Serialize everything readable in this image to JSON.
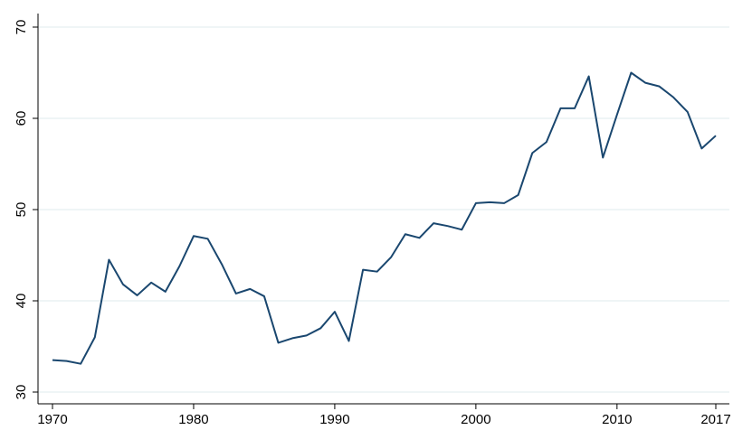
{
  "chart_data": {
    "type": "line",
    "x": [
      1970,
      1971,
      1972,
      1973,
      1974,
      1975,
      1976,
      1977,
      1978,
      1979,
      1980,
      1981,
      1982,
      1983,
      1984,
      1985,
      1986,
      1987,
      1988,
      1989,
      1990,
      1991,
      1992,
      1993,
      1994,
      1995,
      1996,
      1997,
      1998,
      1999,
      2000,
      2001,
      2002,
      2003,
      2004,
      2005,
      2006,
      2007,
      2008,
      2009,
      2010,
      2011,
      2012,
      2013,
      2014,
      2015,
      2016,
      2017
    ],
    "series": [
      {
        "color": "#1a476f",
        "values": [
          33.5,
          33.4,
          33.1,
          36.0,
          44.5,
          41.8,
          40.6,
          42.0,
          41.0,
          43.8,
          47.1,
          46.8,
          44.0,
          40.8,
          41.3,
          40.5,
          35.4,
          35.9,
          36.2,
          37.0,
          38.8,
          35.6,
          43.4,
          43.2,
          44.8,
          47.3,
          46.9,
          48.5,
          48.2,
          47.8,
          50.7,
          50.8,
          50.7,
          51.6,
          56.2,
          57.4,
          61.1,
          61.1,
          64.6,
          55.7,
          60.4,
          65.0,
          63.9,
          63.5,
          62.3,
          60.7,
          56.7,
          58.1
        ]
      }
    ],
    "xlim": [
      1970,
      2017
    ],
    "xticks": [
      1970,
      1980,
      1990,
      2000,
      2010,
      2017
    ],
    "ylim": [
      30,
      70
    ],
    "yticks": [
      30,
      40,
      50,
      60,
      70
    ],
    "grid": true
  }
}
